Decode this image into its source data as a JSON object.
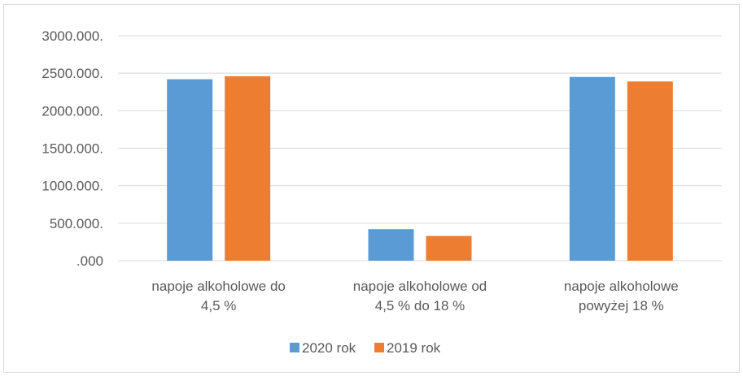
{
  "chart_data": {
    "type": "bar",
    "categories": [
      [
        "napoje alkoholowe do",
        "4,5 %"
      ],
      [
        "napoje alkoholowe od",
        "4,5 % do 18 %"
      ],
      [
        "napoje alkoholowe",
        "powyżej 18 %"
      ]
    ],
    "series": [
      {
        "name": "2020 rok",
        "color": "#5b9bd5",
        "values": [
          2420,
          420,
          2450
        ]
      },
      {
        "name": "2019 rok",
        "color": "#ed7d31",
        "values": [
          2460,
          330,
          2390
        ]
      }
    ],
    "ylim": [
      0,
      3000
    ],
    "yticks": [
      0,
      500,
      1000,
      1500,
      2000,
      2500,
      3000
    ],
    "ytick_labels": [
      ".000",
      "500.000.",
      "1000.000.",
      "1500.000.",
      "2000.000.",
      "2500.000.",
      "3000.000."
    ],
    "grid": true,
    "gridline_color": "#d9d9d9",
    "legend_position": "bottom",
    "title": "",
    "xlabel": "",
    "ylabel": ""
  }
}
